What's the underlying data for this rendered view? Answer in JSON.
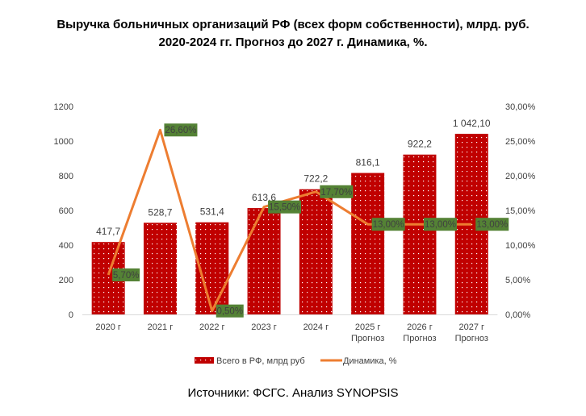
{
  "chart_data": {
    "type": "bar+line",
    "title_line1": "Выручка больничных организаций РФ (всех форм собственности), млрд. руб.",
    "title_line2": "2020-2024 гг. Прогноз до 2027 г. Динамика, %.",
    "categories": [
      [
        "2020 г"
      ],
      [
        "2021 г"
      ],
      [
        "2022 г"
      ],
      [
        "2023 г"
      ],
      [
        "2024 г"
      ],
      [
        "2025 г",
        "Прогноз"
      ],
      [
        "2026 г",
        "Прогноз"
      ],
      [
        "2027 г",
        "Прогноз"
      ]
    ],
    "series": [
      {
        "name": "Всего в РФ, млрд руб",
        "type": "bar",
        "axis": "left",
        "color": "#C00000",
        "values": [
          417.7,
          528.7,
          531.4,
          613.6,
          722.2,
          816.1,
          922.2,
          1042.1
        ],
        "labels": [
          "417,7",
          "528,7",
          "531,4",
          "613,6",
          "722,2",
          "816,1",
          "922,2",
          "1 042,10"
        ]
      },
      {
        "name": "Динамика, %",
        "type": "line",
        "axis": "right",
        "color": "#ED7D31",
        "values": [
          5.7,
          26.6,
          0.5,
          15.5,
          17.7,
          13.0,
          13.0,
          13.0
        ],
        "labels": [
          "5,70%",
          "26,60%",
          "0,50%",
          "15,50%",
          "17,70%",
          "13,00%",
          "13,00%",
          "13,00%"
        ],
        "label_bg": "#548235"
      }
    ],
    "left_axis": {
      "range": [
        0,
        1200
      ],
      "ticks": [
        "0",
        "200",
        "400",
        "600",
        "800",
        "1000",
        "1200"
      ]
    },
    "right_axis": {
      "range": [
        0,
        30
      ],
      "ticks": [
        "0,00%",
        "5,00%",
        "10,00%",
        "15,00%",
        "20,00%",
        "25,00%",
        "30,00%"
      ]
    },
    "grid": false,
    "legend_position": "bottom"
  },
  "source": "Источники: ФСГС. Анализ SYNOPSIS"
}
